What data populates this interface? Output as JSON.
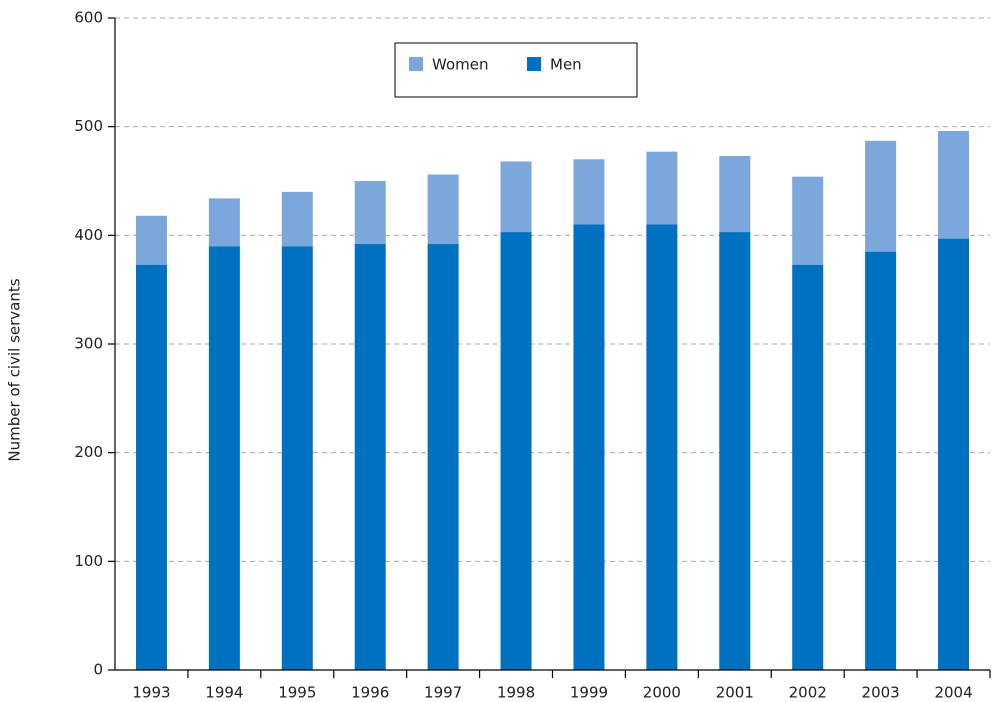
{
  "chart_data": {
    "type": "stacked_bar",
    "y_label": "Number of civil servants",
    "categories": [
      "1993",
      "1994",
      "1995",
      "1996",
      "1997",
      "1998",
      "1999",
      "2000",
      "2001",
      "2002",
      "2003",
      "2004"
    ],
    "series": [
      {
        "name": "Men",
        "color": "#0070c0",
        "values": [
          373,
          390,
          390,
          392,
          392,
          403,
          410,
          410,
          403,
          373,
          385,
          397
        ]
      },
      {
        "name": "Women",
        "color": "#7ba7dc",
        "values": [
          45,
          44,
          50,
          58,
          64,
          65,
          60,
          67,
          70,
          81,
          102,
          99
        ]
      }
    ],
    "ylim": [
      0,
      600
    ],
    "yticks": [
      0,
      100,
      200,
      300,
      400,
      500,
      600
    ],
    "grid": true
  }
}
